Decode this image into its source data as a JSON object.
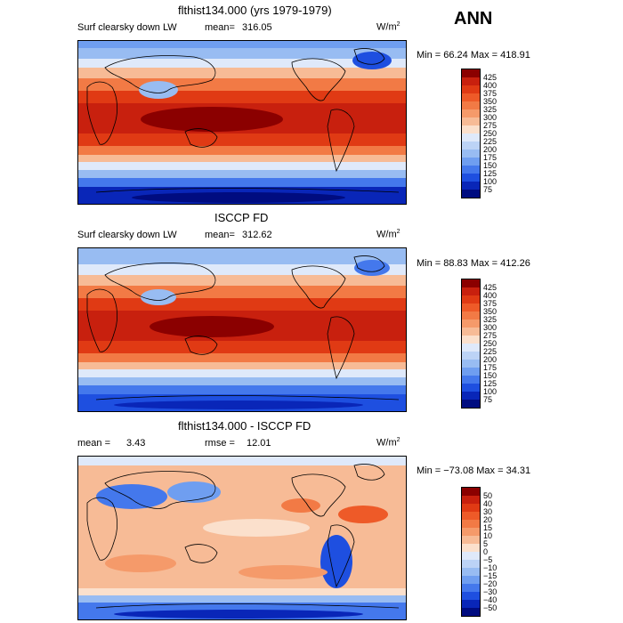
{
  "season": "ANN",
  "panels": [
    {
      "title": "flthist134.000 (yrs 1979-1979)",
      "variable": "Surf clearsky down LW",
      "stat_label": "mean=",
      "stat_value": "316.05",
      "units_base": "W/m",
      "units_exp": "2",
      "minmax": "Min =  66.24 Max = 418.91",
      "colorbar": {
        "labels": [
          "425",
          "400",
          "375",
          "350",
          "325",
          "300",
          "275",
          "250",
          "225",
          "200",
          "175",
          "150",
          "125",
          "100",
          "75"
        ],
        "colors": [
          "#8b0000",
          "#c8200e",
          "#e03a14",
          "#ee5a28",
          "#f27a45",
          "#f59a6a",
          "#f7bb96",
          "#fbe0cc",
          "#dfe9fa",
          "#bcd3f6",
          "#98bcf2",
          "#6f9ef0",
          "#4478ec",
          "#1e4fe0",
          "#0926b8",
          "#000c80"
        ]
      }
    },
    {
      "title": "ISCCP FD",
      "variable": "Surf clearsky down LW",
      "stat_label": "mean=",
      "stat_value": "312.62",
      "units_base": "W/m",
      "units_exp": "2",
      "minmax": "Min =  88.83 Max = 412.26",
      "colorbar": {
        "labels": [
          "425",
          "400",
          "375",
          "350",
          "325",
          "300",
          "275",
          "250",
          "225",
          "200",
          "175",
          "150",
          "125",
          "100",
          "75"
        ],
        "colors": [
          "#8b0000",
          "#c8200e",
          "#e03a14",
          "#ee5a28",
          "#f27a45",
          "#f59a6a",
          "#f7bb96",
          "#fbe0cc",
          "#dfe9fa",
          "#bcd3f6",
          "#98bcf2",
          "#6f9ef0",
          "#4478ec",
          "#1e4fe0",
          "#0926b8",
          "#000c80"
        ]
      }
    },
    {
      "title": "flthist134.000 - ISCCP FD",
      "mean_label": "mean =",
      "mean_value": "3.43",
      "rmse_label": "rmse =",
      "rmse_value": "12.01",
      "units_base": "W/m",
      "units_exp": "2",
      "minmax": "Min = −73.08 Max =  34.31",
      "colorbar": {
        "labels": [
          "50",
          "40",
          "30",
          "20",
          "15",
          "10",
          "5",
          "0",
          "−5",
          "−10",
          "−15",
          "−20",
          "−30",
          "−40",
          "−50"
        ],
        "colors": [
          "#8b0000",
          "#c8200e",
          "#e03a14",
          "#ee5a28",
          "#f27a45",
          "#f59a6a",
          "#f7bb96",
          "#fbe0cc",
          "#dfe9fa",
          "#bcd3f6",
          "#98bcf2",
          "#6f9ef0",
          "#4478ec",
          "#1e4fe0",
          "#0926b8",
          "#000c80"
        ]
      }
    }
  ]
}
